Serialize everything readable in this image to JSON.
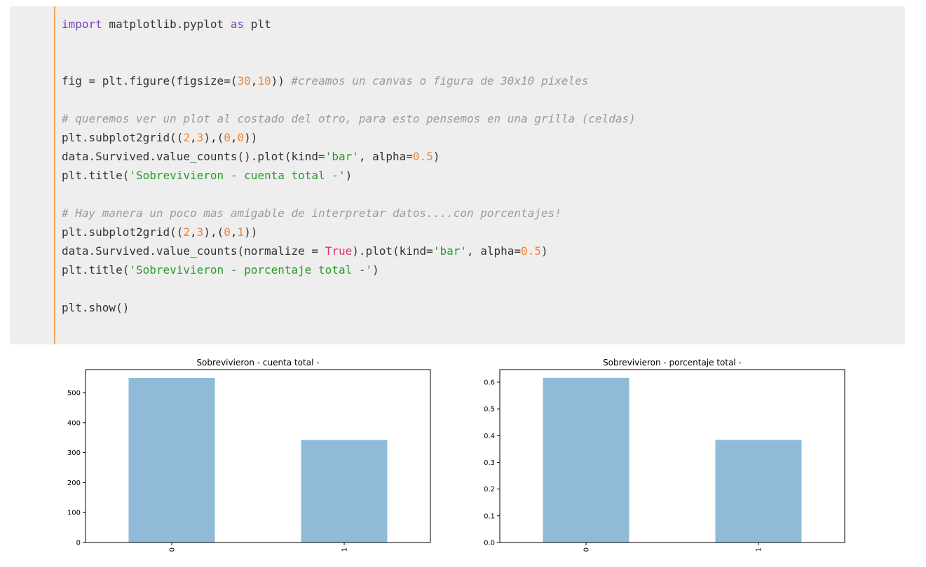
{
  "code_cell": {
    "lines": [
      [
        {
          "t": "kw",
          "v": "import"
        },
        {
          "t": "plain",
          "v": " matplotlib.pyplot "
        },
        {
          "t": "kw",
          "v": "as"
        },
        {
          "t": "plain",
          "v": " plt"
        }
      ],
      [],
      [],
      [
        {
          "t": "plain",
          "v": "fig = plt.figure(figsize=("
        },
        {
          "t": "num",
          "v": "30"
        },
        {
          "t": "plain",
          "v": ","
        },
        {
          "t": "num",
          "v": "10"
        },
        {
          "t": "plain",
          "v": ")) "
        },
        {
          "t": "cmt",
          "v": "#creamos un canvas o figura de 30x10 pixeles"
        }
      ],
      [],
      [
        {
          "t": "cmt",
          "v": "# queremos ver un plot al costado del otro, para esto pensemos en una grilla (celdas)"
        }
      ],
      [
        {
          "t": "plain",
          "v": "plt.subplot2grid(("
        },
        {
          "t": "num",
          "v": "2"
        },
        {
          "t": "plain",
          "v": ","
        },
        {
          "t": "num",
          "v": "3"
        },
        {
          "t": "plain",
          "v": "),("
        },
        {
          "t": "num",
          "v": "0"
        },
        {
          "t": "plain",
          "v": ","
        },
        {
          "t": "num",
          "v": "0"
        },
        {
          "t": "plain",
          "v": "))"
        }
      ],
      [
        {
          "t": "plain",
          "v": "data.Survived.value_counts().plot(kind="
        },
        {
          "t": "str",
          "v": "'bar'"
        },
        {
          "t": "plain",
          "v": ", alpha="
        },
        {
          "t": "num",
          "v": "0.5"
        },
        {
          "t": "plain",
          "v": ")"
        }
      ],
      [
        {
          "t": "plain",
          "v": "plt.title("
        },
        {
          "t": "str",
          "v": "'Sobrevivieron - cuenta total -'"
        },
        {
          "t": "plain",
          "v": ")"
        }
      ],
      [],
      [
        {
          "t": "cmt",
          "v": "# Hay manera un poco mas amigable de interpretar datos....con porcentajes!"
        }
      ],
      [
        {
          "t": "plain",
          "v": "plt.subplot2grid(("
        },
        {
          "t": "num",
          "v": "2"
        },
        {
          "t": "plain",
          "v": ","
        },
        {
          "t": "num",
          "v": "3"
        },
        {
          "t": "plain",
          "v": "),("
        },
        {
          "t": "num",
          "v": "0"
        },
        {
          "t": "plain",
          "v": ","
        },
        {
          "t": "num",
          "v": "1"
        },
        {
          "t": "plain",
          "v": "))"
        }
      ],
      [
        {
          "t": "plain",
          "v": "data.Survived.value_counts(normalize = "
        },
        {
          "t": "bool",
          "v": "True"
        },
        {
          "t": "plain",
          "v": ").plot(kind="
        },
        {
          "t": "str",
          "v": "'bar'"
        },
        {
          "t": "plain",
          "v": ", alpha="
        },
        {
          "t": "num",
          "v": "0.5"
        },
        {
          "t": "plain",
          "v": ")"
        }
      ],
      [
        {
          "t": "plain",
          "v": "plt.title("
        },
        {
          "t": "str",
          "v": "'Sobrevivieron - porcentaje total -'"
        },
        {
          "t": "plain",
          "v": ")"
        }
      ],
      [],
      [
        {
          "t": "plain",
          "v": "plt.show()"
        }
      ]
    ]
  },
  "colors": {
    "cell_background": "#eeeeee",
    "cell_accent": "#f3a15c",
    "bar_fill": "#1f77b4",
    "bar_alpha": 0.5
  },
  "chart_data": [
    {
      "type": "bar",
      "title": "Sobrevivieron - cuenta total -",
      "categories": [
        "0",
        "1"
      ],
      "values": [
        549,
        342
      ],
      "ylim": [
        0,
        577
      ],
      "yticks": [
        0,
        100,
        200,
        300,
        400,
        500
      ],
      "ytick_labels": [
        "0",
        "100",
        "200",
        "300",
        "400",
        "500"
      ],
      "xlabel": "",
      "ylabel": "",
      "grid": false
    },
    {
      "type": "bar",
      "title": "Sobrevivieron - porcentaje total -",
      "categories": [
        "0",
        "1"
      ],
      "values": [
        0.616,
        0.384
      ],
      "ylim": [
        0,
        0.647
      ],
      "yticks": [
        0.0,
        0.1,
        0.2,
        0.3,
        0.4,
        0.5,
        0.6
      ],
      "ytick_labels": [
        "0.0",
        "0.1",
        "0.2",
        "0.3",
        "0.4",
        "0.5",
        "0.6"
      ],
      "xlabel": "",
      "ylabel": "",
      "grid": false
    }
  ]
}
